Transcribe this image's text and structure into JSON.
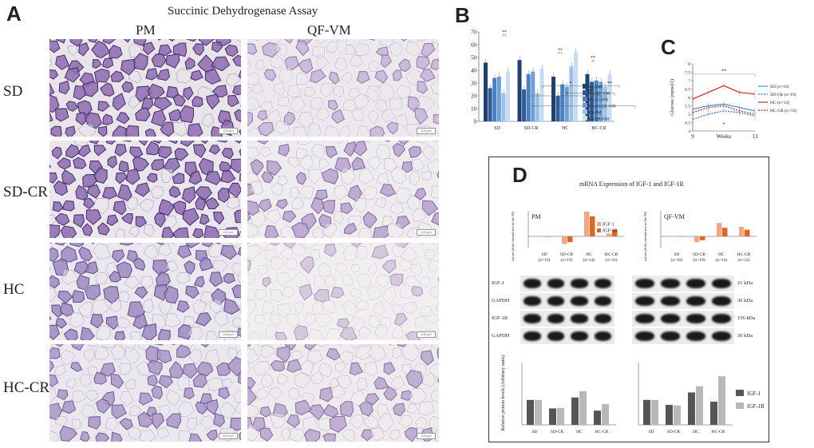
{
  "panelA": {
    "letter": "A",
    "title": "Succinic Dehydrogenase Assay",
    "columns": [
      "PM",
      "QF-VM"
    ],
    "rows": [
      "SD",
      "SD-CR",
      "HC",
      "HC-CR"
    ],
    "scalebar_text": "100 µm"
  },
  "panelB": {
    "letter": "B",
    "chart_data": {
      "type": "bar",
      "categories": [
        "SD",
        "SD-CR",
        "HC",
        "HC-CR"
      ],
      "ylim": [
        0,
        70
      ],
      "yticks": [
        0,
        10,
        20,
        30,
        40,
        50,
        60,
        70
      ],
      "series": [
        {
          "name": "Ox-PM",
          "color": "#1f3f6d",
          "values": [
            46,
            48,
            35,
            37
          ]
        },
        {
          "name": "Ox-QF-VM",
          "color": "#2e5b96",
          "values": [
            26,
            25,
            20,
            31
          ]
        },
        {
          "name": "Ox-Gl-PM",
          "color": "#4a7fc0",
          "values": [
            34,
            37,
            29,
            32
          ]
        },
        {
          "name": "Ox-Gl-QF-VM",
          "color": "#6f9fd8",
          "values": [
            35,
            39,
            27,
            31
          ]
        },
        {
          "name": "Gl-PM",
          "color": "#9cc0e8",
          "values": [
            22,
            22,
            43,
            27
          ]
        },
        {
          "name": "Gl-QF-VM",
          "color": "#c7dcf2",
          "values": [
            39,
            41,
            54,
            37
          ]
        }
      ],
      "annotations": [
        "**",
        "**",
        "**",
        "*",
        "*",
        "*",
        "**",
        "**",
        "**",
        "*",
        "**",
        "**"
      ]
    }
  },
  "panelC": {
    "letter": "C",
    "chart_data": {
      "type": "line",
      "x": [
        9,
        10,
        11,
        12,
        13
      ],
      "xticks": [
        "9",
        "13"
      ],
      "xlabel": "Weeks",
      "ylabel": "Glucose (mmol/l)",
      "ylim": [
        4,
        8
      ],
      "yticks": [
        4,
        4.5,
        5,
        5.5,
        6,
        6.5,
        7,
        7.5,
        8
      ],
      "series": [
        {
          "name": "SD (n=10)",
          "color": "#3b8fd1",
          "dash": false,
          "values": [
            5.3,
            5.5,
            5.6,
            5.4,
            5.2
          ]
        },
        {
          "name": "SD-CR (n=19)",
          "color": "#3b6fb0",
          "dash": true,
          "values": [
            4.7,
            5.0,
            5.2,
            5.1,
            4.9
          ]
        },
        {
          "name": "HC (n=14)",
          "color": "#c0262b",
          "dash": false,
          "values": [
            5.9,
            6.3,
            6.7,
            6.3,
            6.2
          ]
        },
        {
          "name": "HC-CR (n=33)",
          "color": "#a0252a",
          "dash": true,
          "values": [
            5.1,
            5.4,
            5.5,
            5.2,
            5.0
          ]
        }
      ],
      "annotations": [
        "**",
        "*"
      ]
    }
  },
  "panelD": {
    "letter": "D",
    "title": "mRNA Expression of IGF-1 and IGF-1R",
    "mrna": {
      "ylabel": "values (ddd) normalized to the SD",
      "left_title": "PM",
      "right_title": "QF-VM",
      "legend": [
        "IGF-1",
        "IGF-1R"
      ],
      "colors": [
        "#f0a785",
        "#d9662a"
      ],
      "categories": [
        "SD",
        "SD-CR",
        "HC",
        "HC-CR"
      ],
      "cat_n": [
        "(n=10)",
        "(n=19)",
        "(n=14)",
        "(n=33)"
      ],
      "left_values": [
        [
          0,
          0
        ],
        [
          -0.8,
          -0.6
        ],
        [
          2.6,
          2.1
        ],
        [
          0.3,
          0.7
        ]
      ],
      "right_values": [
        [
          0,
          0
        ],
        [
          -0.6,
          -0.4
        ],
        [
          1.4,
          0.9
        ],
        [
          1.0,
          0.7
        ]
      ]
    },
    "blots": {
      "labels": [
        "IGF-1",
        "GAPDH",
        "IGF-1R",
        "GAPDH"
      ],
      "kda": [
        "21 kDa",
        "36 kDa",
        "156 kDa",
        "36 kDa"
      ]
    },
    "protein": {
      "chart_data": {
        "type": "bar",
        "ylabel": "Relative protein levels (Arbitrary units)",
        "categories": [
          "SD",
          "SD-CR",
          "HC",
          "HC-CR"
        ],
        "ylim": [
          0,
          2.5
        ],
        "series": [
          {
            "name": "IGF-1",
            "color": "#555555",
            "left": [
              1.0,
              0.66,
              1.1,
              0.57
            ],
            "right": [
              1.0,
              0.8,
              1.3,
              0.93
            ]
          },
          {
            "name": "IGF-1R",
            "color": "#b8b8b8",
            "left": [
              1.0,
              0.68,
              1.35,
              0.83
            ],
            "right": [
              1.0,
              0.78,
              1.55,
              1.95
            ]
          }
        ]
      }
    }
  }
}
